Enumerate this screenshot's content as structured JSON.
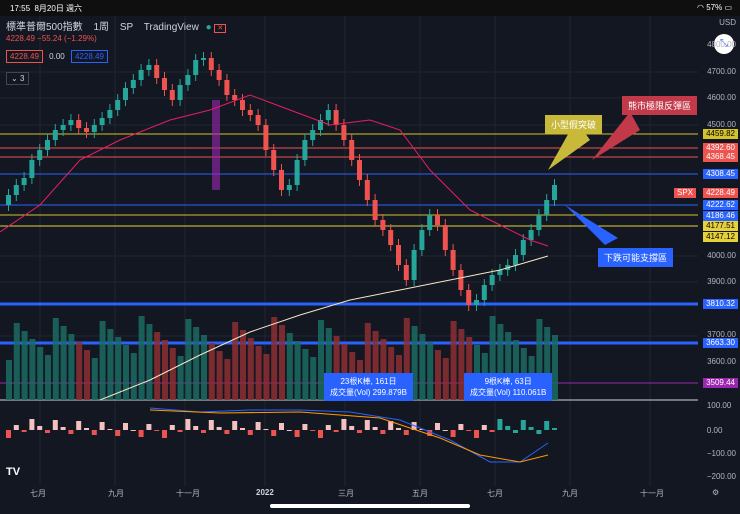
{
  "status_bar": {
    "time": "17:55",
    "date": "8月20日 週六",
    "battery": "57%"
  },
  "legend": {
    "title": "標準普爾500指數",
    "interval": "1周",
    "exchange": "SP",
    "source": "TradingView"
  },
  "ohlc_line": "4228.49 −55.24 (−1.29%)",
  "price_boxes": {
    "sell": "4228.49",
    "spread": "0.00",
    "buy": "4228.49"
  },
  "indicator_count": "3",
  "currency": "USD",
  "price_axis_labels": [
    "4800.00",
    "4700.00",
    "4600.00",
    "4500.00",
    "4000.00",
    "3900.00",
    "3700.00",
    "3600.00"
  ],
  "price_tags": [
    {
      "label": "4459.82",
      "color": "#d4c22b",
      "text_color": "#000000"
    },
    {
      "label": "4392.60",
      "color": "#ef5350",
      "text_color": "#ffffff"
    },
    {
      "label": "4368.45",
      "color": "#ef5350",
      "text_color": "#ffffff"
    },
    {
      "label": "4308.45",
      "color": "#2962ff",
      "text_color": "#ffffff"
    },
    {
      "label": "SPX",
      "color": "#ef5350",
      "text_color": "#ffffff"
    },
    {
      "label": "4228.49",
      "color": "#ef5350",
      "text_color": "#ffffff"
    },
    {
      "label": "4222.62",
      "color": "#2962ff",
      "text_color": "#ffffff"
    },
    {
      "label": "4186.46",
      "color": "#2962ff",
      "text_color": "#ffffff"
    },
    {
      "label": "4177.51",
      "color": "#e6d13b",
      "text_color": "#000000"
    },
    {
      "label": "4147.12",
      "color": "#e6d13b",
      "text_color": "#000000"
    },
    {
      "label": "3810.32",
      "color": "#2962ff",
      "text_color": "#ffffff"
    },
    {
      "label": "3663.30",
      "color": "#2962ff",
      "text_color": "#ffffff"
    },
    {
      "label": "3509.44",
      "color": "#9c27b0",
      "text_color": "#ffffff"
    }
  ],
  "osc_labels": [
    "100.00",
    "0.00",
    "−100.00",
    "−200.00"
  ],
  "time_labels": [
    "七月",
    "九月",
    "十一月",
    "2022",
    "三月",
    "五月",
    "七月",
    "九月",
    "十一月"
  ],
  "callouts": {
    "fake_break": "小型假突破",
    "bear_rebound": "熊市極限反彈區",
    "support": "下跌可能支撐區"
  },
  "volume_boxes": [
    {
      "line1": "23根K棒, 161日",
      "line2": "成交量(Vol) 299.879B"
    },
    {
      "line1": "9根K棒, 63日",
      "line2": "成交量(Vol) 110.061B"
    }
  ],
  "logo": "TV"
}
